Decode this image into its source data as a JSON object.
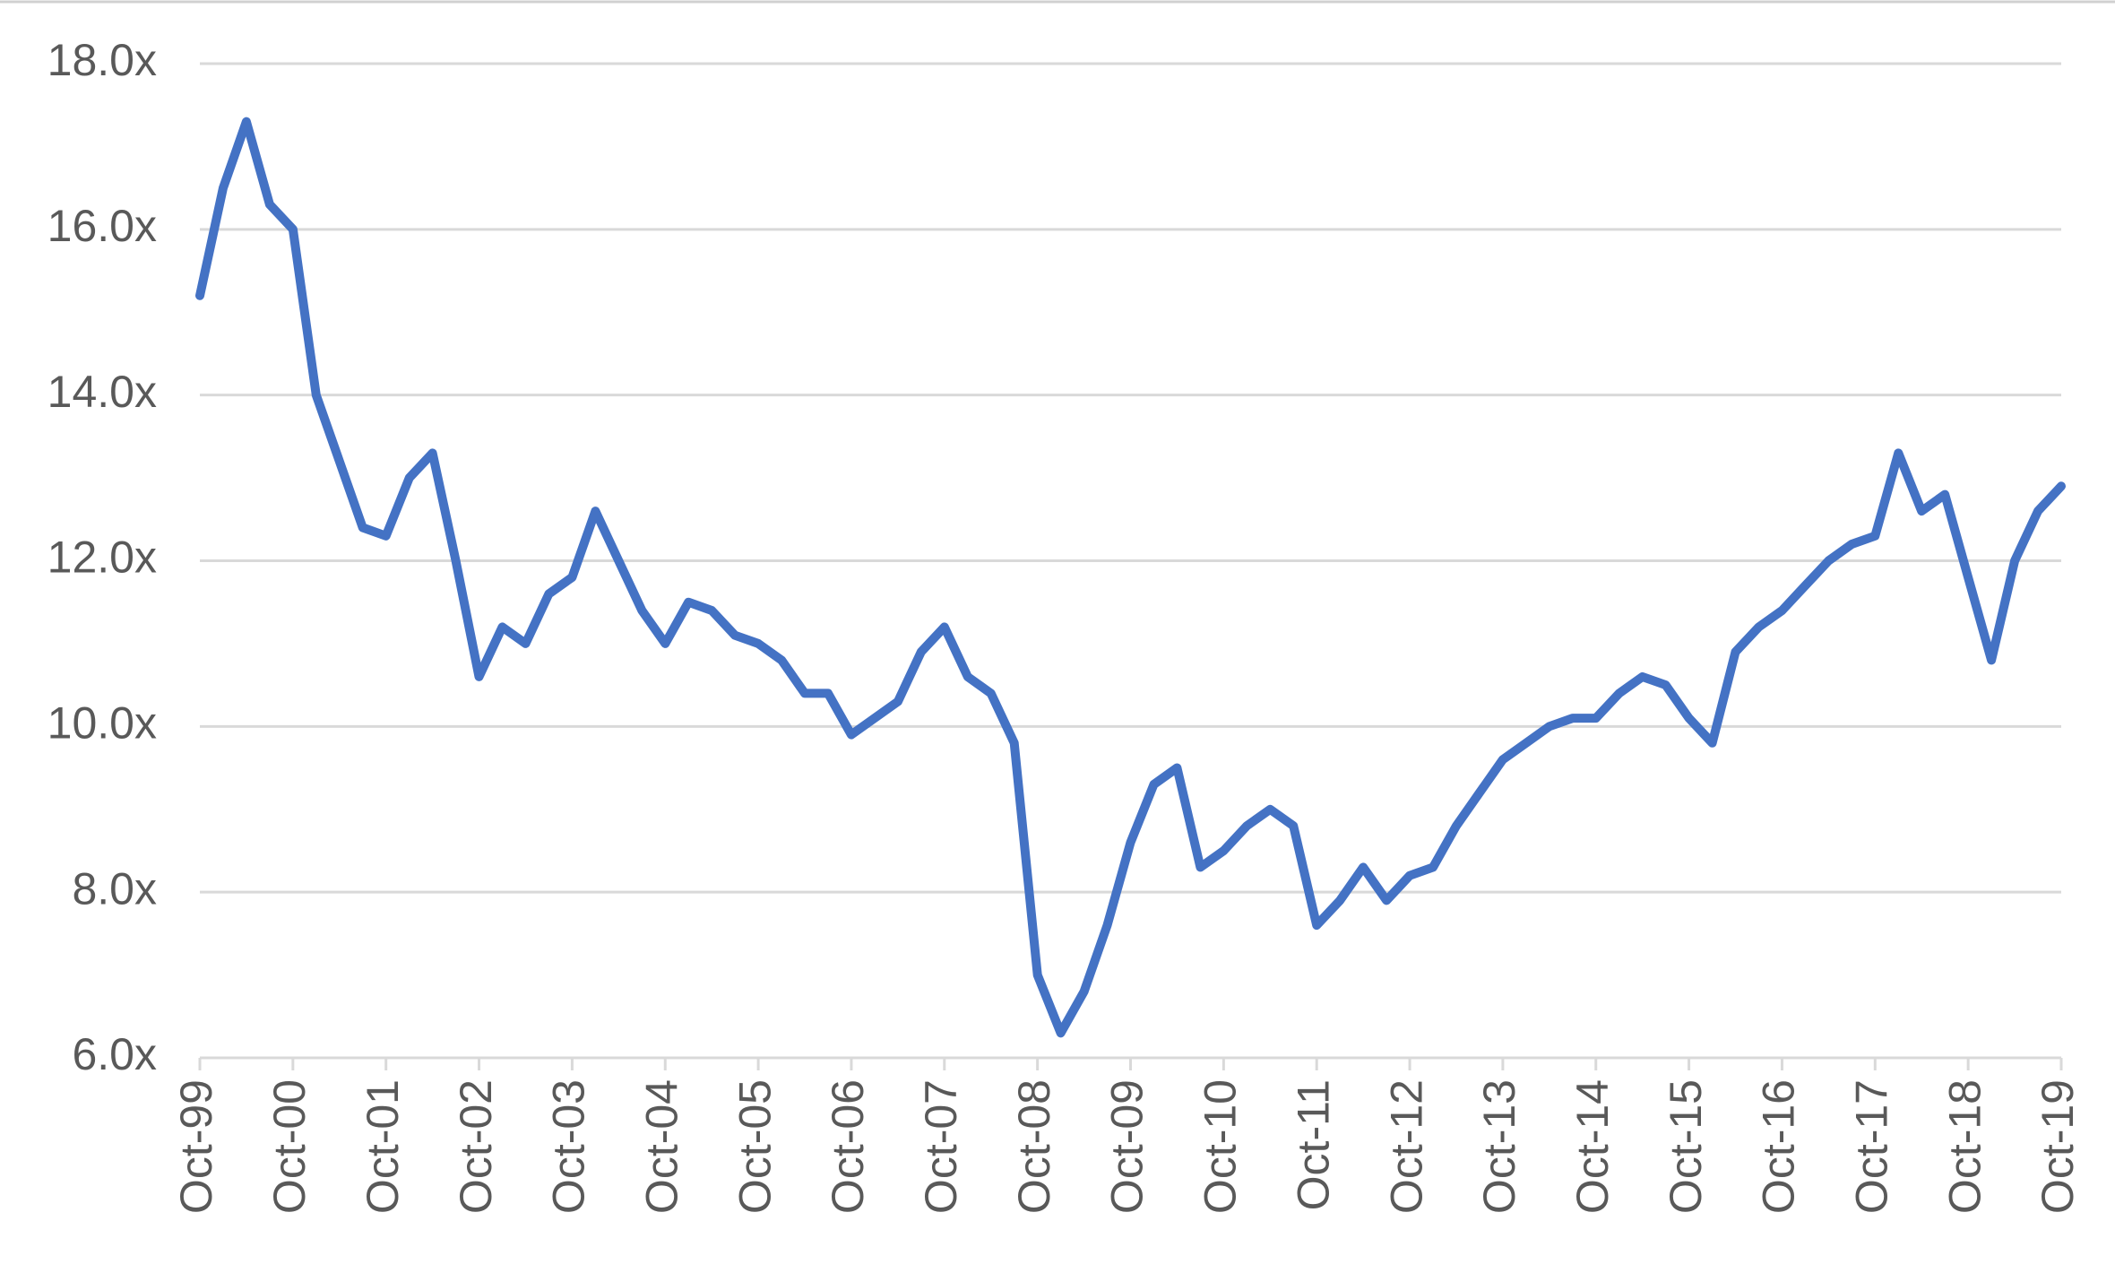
{
  "chart_data": {
    "type": "line",
    "categories": [
      "Oct-99",
      null,
      null,
      null,
      "Oct-00",
      null,
      null,
      null,
      "Oct-01",
      null,
      null,
      null,
      "Oct-02",
      null,
      null,
      null,
      "Oct-03",
      null,
      null,
      null,
      "Oct-04",
      null,
      null,
      null,
      "Oct-05",
      null,
      null,
      null,
      "Oct-06",
      null,
      null,
      null,
      "Oct-07",
      null,
      null,
      null,
      "Oct-08",
      null,
      null,
      null,
      "Oct-09",
      null,
      null,
      null,
      "Oct-10",
      null,
      null,
      null,
      "Oct-11",
      null,
      null,
      null,
      "Oct-12",
      null,
      null,
      null,
      "Oct-13",
      null,
      null,
      null,
      "Oct-14",
      null,
      null,
      null,
      "Oct-15",
      null,
      null,
      null,
      "Oct-16",
      null,
      null,
      null,
      "Oct-17",
      null,
      null,
      null,
      "Oct-18",
      null,
      null,
      null,
      "Oct-19"
    ],
    "series": [
      {
        "color": "#4472c4",
        "values": [
          15.2,
          16.5,
          17.3,
          16.3,
          16.0,
          14.0,
          13.2,
          12.4,
          12.3,
          13.0,
          13.3,
          12.0,
          10.6,
          11.2,
          11.0,
          11.6,
          11.8,
          12.6,
          12.0,
          11.4,
          11.0,
          11.5,
          11.4,
          11.1,
          11.0,
          10.8,
          10.4,
          10.4,
          9.9,
          10.1,
          10.3,
          10.9,
          11.2,
          10.6,
          10.4,
          9.8,
          7.0,
          6.3,
          6.8,
          7.6,
          8.6,
          9.3,
          9.5,
          8.3,
          8.5,
          8.8,
          9.0,
          8.8,
          7.6,
          7.9,
          8.3,
          7.9,
          8.2,
          8.3,
          8.8,
          9.2,
          9.6,
          9.8,
          10.0,
          10.1,
          10.1,
          10.4,
          10.6,
          10.5,
          10.1,
          9.8,
          10.9,
          11.2,
          11.4,
          11.7,
          12.0,
          12.2,
          12.3,
          13.3,
          12.6,
          12.8,
          11.8,
          10.8,
          12.0,
          12.6,
          12.9
        ]
      }
    ],
    "ylim": [
      6,
      18
    ],
    "yticks": [
      {
        "value": 6,
        "label": "6.0x"
      },
      {
        "value": 8,
        "label": "8.0x"
      },
      {
        "value": 10,
        "label": "10.0x"
      },
      {
        "value": 12,
        "label": "12.0x"
      },
      {
        "value": 14,
        "label": "14.0x"
      },
      {
        "value": 16,
        "label": "16.0x"
      },
      {
        "value": 18,
        "label": "18.0x"
      }
    ],
    "grid": true
  }
}
